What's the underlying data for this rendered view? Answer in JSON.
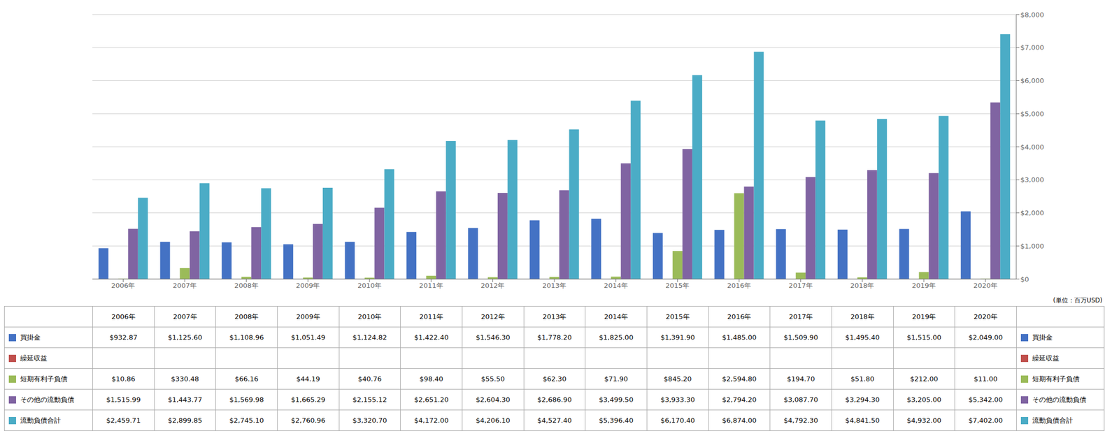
{
  "chart_data": {
    "type": "bar",
    "categories": [
      "2006年",
      "2007年",
      "2008年",
      "2009年",
      "2010年",
      "2011年",
      "2012年",
      "2013年",
      "2014年",
      "2015年",
      "2016年",
      "2017年",
      "2018年",
      "2019年",
      "2020年"
    ],
    "series": [
      {
        "name": "買掛金",
        "color": "#4472C4",
        "values": [
          932.87,
          1125.6,
          1108.96,
          1051.49,
          1124.82,
          1422.4,
          1546.3,
          1778.2,
          1825.0,
          1391.9,
          1485.0,
          1509.9,
          1495.4,
          1515.0,
          2049.0
        ],
        "value_labels": [
          "$932.87",
          "$1,125.60",
          "$1,108.96",
          "$1,051.49",
          "$1,124.82",
          "$1,422.40",
          "$1,546.30",
          "$1,778.20",
          "$1,825.00",
          "$1,391.90",
          "$1,485.00",
          "$1,509.90",
          "$1,495.40",
          "$1,515.00",
          "$2,049.00"
        ]
      },
      {
        "name": "繰延収益",
        "color": "#C0504D",
        "values": [
          0,
          0,
          0,
          0,
          0,
          0,
          0,
          0,
          0,
          0,
          0,
          0,
          0,
          0,
          0
        ]
      },
      {
        "name": "短期有利子負債",
        "color": "#9BBB59",
        "values": [
          10.86,
          330.48,
          66.16,
          44.19,
          40.76,
          98.4,
          55.5,
          62.3,
          71.9,
          845.2,
          2594.8,
          194.7,
          51.8,
          212.0,
          11.0
        ],
        "value_labels": [
          "$10.86",
          "$330.48",
          "$66.16",
          "$44.19",
          "$40.76",
          "$98.40",
          "$55.50",
          "$62.30",
          "$71.90",
          "$845.20",
          "$2,594.80",
          "$194.70",
          "$51.80",
          "$212.00",
          "$11.00"
        ]
      },
      {
        "name": "その他の流動負債",
        "color": "#8064A2",
        "values": [
          1515.99,
          1443.77,
          1569.98,
          1665.29,
          2155.12,
          2651.2,
          2604.3,
          2686.9,
          3499.5,
          3933.3,
          2794.2,
          3087.7,
          3294.3,
          3205.0,
          5342.0
        ],
        "value_labels": [
          "$1,515.99",
          "$1,443.77",
          "$1,569.98",
          "$1,665.29",
          "$2,155.12",
          "$2,651.20",
          "$2,604.30",
          "$2,686.90",
          "$3,499.50",
          "$3,933.30",
          "$2,794.20",
          "$3,087.70",
          "$3,294.30",
          "$3,205.00",
          "$5,342.00"
        ]
      },
      {
        "name": "流動負債合計",
        "color": "#4BACC6",
        "values": [
          2459.71,
          2899.85,
          2745.1,
          2760.96,
          3320.7,
          4172.0,
          4206.1,
          4527.4,
          5396.4,
          6170.4,
          6874.0,
          4792.3,
          4841.5,
          4932.0,
          7402.0
        ],
        "value_labels": [
          "$2,459.71",
          "$2,899.85",
          "$2,745.10",
          "$2,760.96",
          "$3,320.70",
          "$4,172.00",
          "$4,206.10",
          "$4,527.40",
          "$5,396.40",
          "$6,170.40",
          "$6,874.00",
          "$4,792.30",
          "$4,841.50",
          "$4,932.00",
          "$7,402.00"
        ]
      }
    ],
    "ylim": [
      0,
      8000
    ],
    "yticks": [
      {
        "value": 0,
        "label": "$0"
      },
      {
        "value": 1000,
        "label": "$1,000"
      },
      {
        "value": 2000,
        "label": "$2,000"
      },
      {
        "value": 3000,
        "label": "$3,000"
      },
      {
        "value": 4000,
        "label": "$4,000"
      },
      {
        "value": 5000,
        "label": "$5,000"
      },
      {
        "value": 6000,
        "label": "$6,000"
      },
      {
        "value": 7000,
        "label": "$7,000"
      },
      {
        "value": 8000,
        "label": "$8,000"
      }
    ],
    "grid": true,
    "annotations": [
      "(単位：百万USD)"
    ]
  }
}
